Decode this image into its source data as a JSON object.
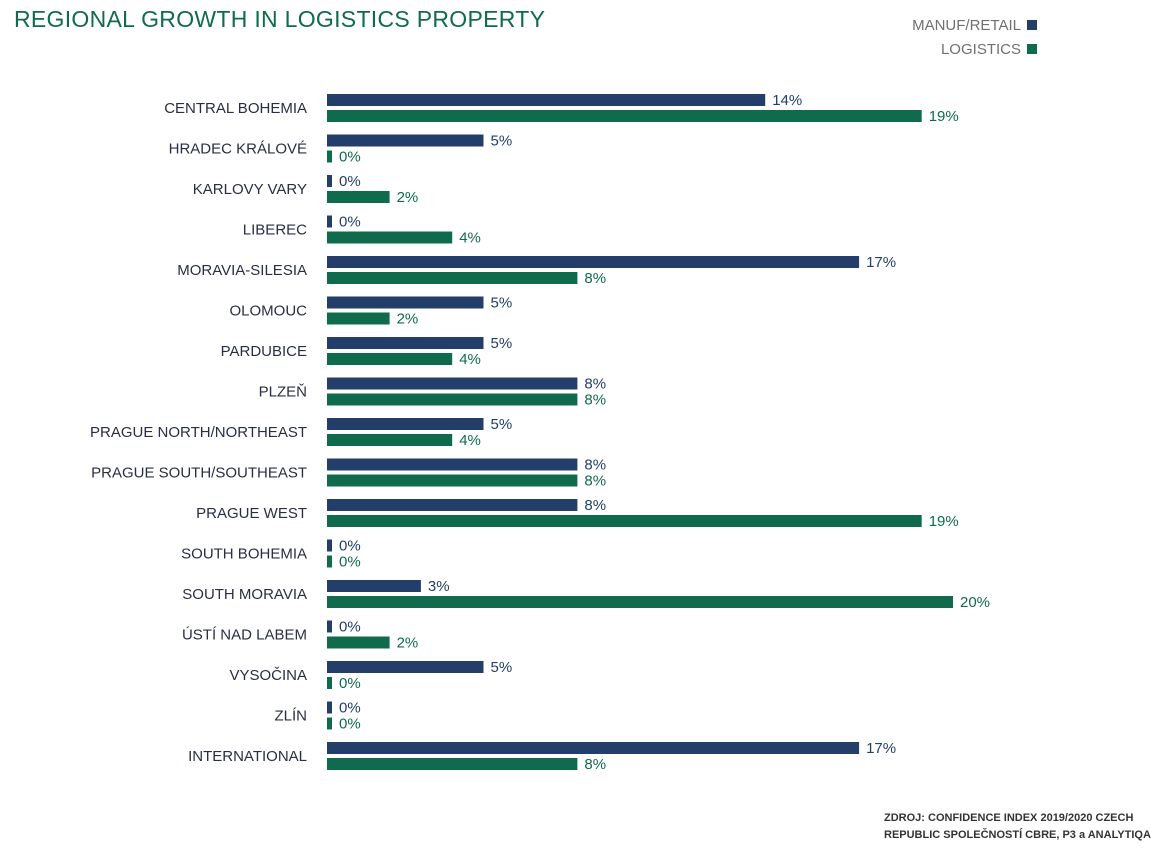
{
  "title": "REGIONAL GROWTH IN LOGISTICS PROPERTY",
  "source": {
    "line1": "ZDROJ: CONFIDENCE INDEX 2019/2020 CZECH",
    "line2": "REPUBLIC SPOLEČNOSTÍ CBRE, P3 a ANALYTIQA"
  },
  "colors": {
    "manuf_retail": "#243e6a",
    "logistics": "#0f6b4c"
  },
  "chart_data": {
    "type": "bar",
    "orientation": "horizontal",
    "legend_position": "top-right",
    "grid": false,
    "xlim": [
      0,
      20
    ],
    "categories": [
      "CENTRAL BOHEMIA",
      "HRADEC KRÁLOVÉ",
      "KARLOVY VARY",
      "LIBEREC",
      "MORAVIA-SILESIA",
      "OLOMOUC",
      "PARDUBICE",
      "PLZEŇ",
      "PRAGUE NORTH/NORTHEAST",
      "PRAGUE SOUTH/SOUTHEAST",
      "PRAGUE WEST",
      "SOUTH BOHEMIA",
      "SOUTH MORAVIA",
      "ÚSTÍ NAD LABEM",
      "VYSOČINA",
      "ZLÍN",
      "INTERNATIONAL"
    ],
    "series": [
      {
        "name": "MANUF/RETAIL",
        "values": [
          14,
          5,
          0,
          0,
          17,
          5,
          5,
          8,
          5,
          8,
          8,
          0,
          3,
          0,
          5,
          0,
          17
        ],
        "labels": [
          "14%",
          "5%",
          "0%",
          "0%",
          "17%",
          "5%",
          "5%",
          "8%",
          "5%",
          "8%",
          "8%",
          "0%",
          "3%",
          "0%",
          "5%",
          "0%",
          "17%"
        ]
      },
      {
        "name": "LOGISTICS",
        "values": [
          19,
          0,
          2,
          4,
          8,
          2,
          4,
          8,
          4,
          8,
          19,
          0,
          20,
          2,
          0,
          0,
          8
        ],
        "labels": [
          "19%",
          "0%",
          "2%",
          "4%",
          "8%",
          "2%",
          "4%",
          "8%",
          "4%",
          "8%",
          "19%",
          "0%",
          "20%",
          "2%",
          "0%",
          "0%",
          "8%"
        ]
      }
    ]
  }
}
